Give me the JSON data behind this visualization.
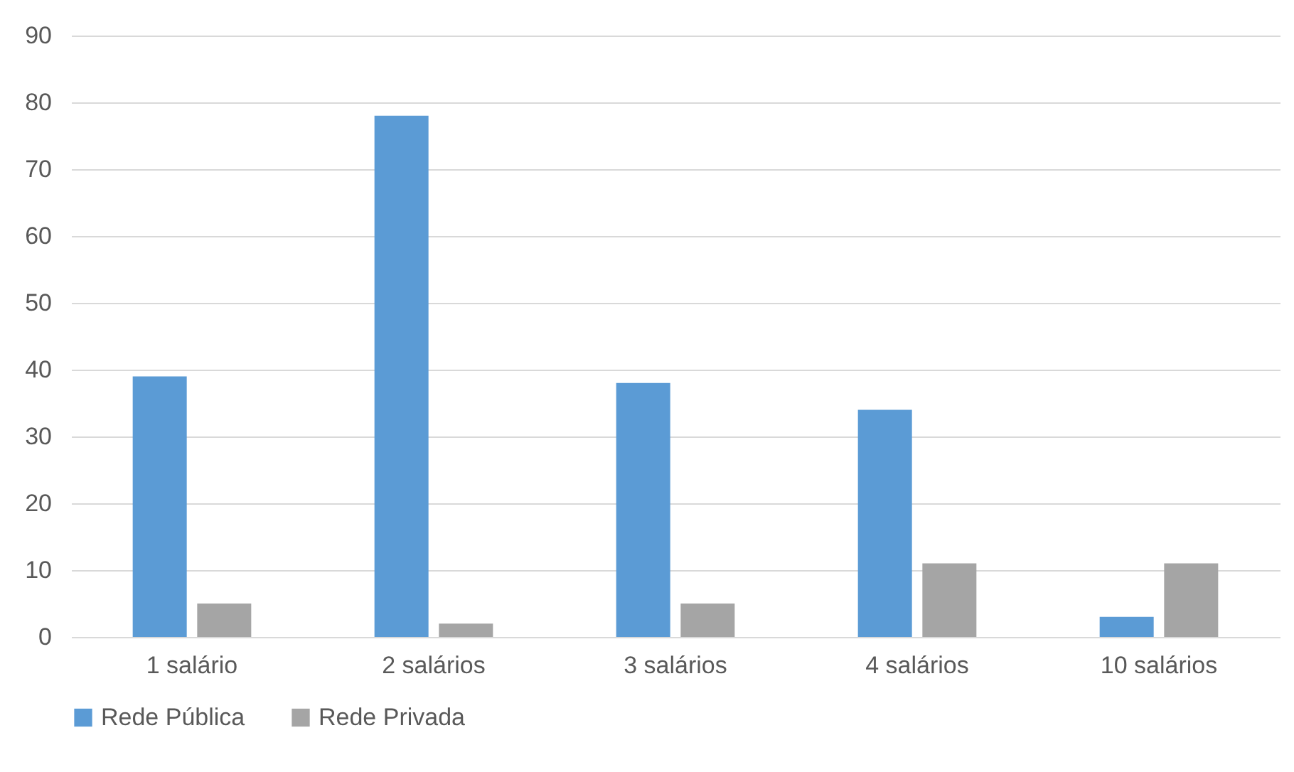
{
  "chart_data": {
    "type": "bar",
    "categories": [
      "1 salário",
      "2 salários",
      "3 salários",
      "4 salários",
      "10 salários"
    ],
    "series": [
      {
        "name": "Rede Pública",
        "color": "#5b9bd5",
        "values": [
          39,
          78,
          38,
          34,
          3
        ]
      },
      {
        "name": "Rede Privada",
        "color": "#a5a5a5",
        "values": [
          5,
          2,
          5,
          11,
          11
        ]
      }
    ],
    "ylim": [
      0,
      90
    ],
    "yticks": [
      0,
      10,
      20,
      30,
      40,
      50,
      60,
      70,
      80,
      90
    ],
    "grid": "y",
    "legend": "bottom"
  }
}
